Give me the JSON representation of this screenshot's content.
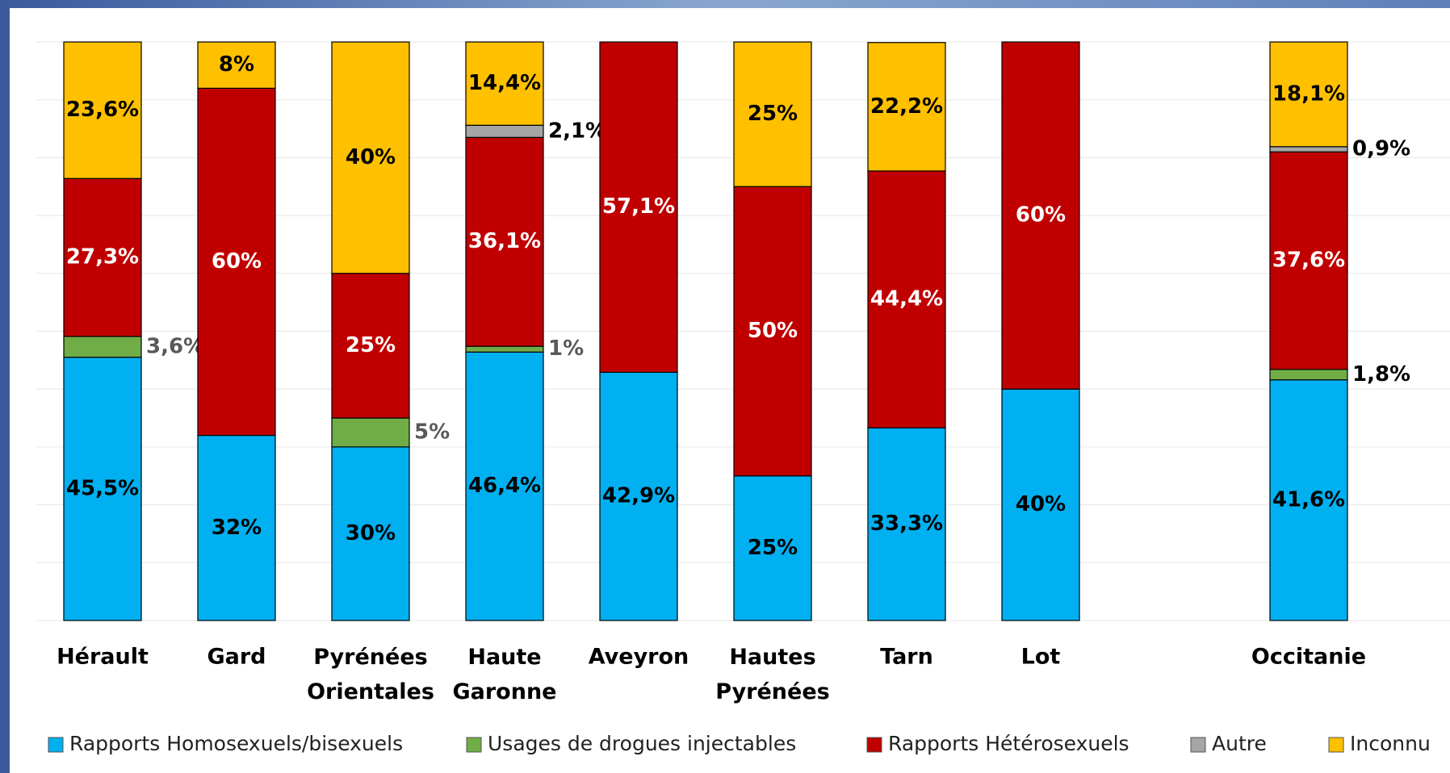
{
  "chart_data": {
    "type": "stacked_bar",
    "categories": [
      "Hérault",
      "Gard",
      "Pyrénées Orientales",
      "Haute Garonne",
      "Aveyron",
      "Hautes Pyrénées",
      "Tarn",
      "Lot",
      null,
      "Occitanie"
    ],
    "series": [
      {
        "name": "Rapports Homosexuels/bisexuels",
        "color": "#00b0f0",
        "values": [
          45.5,
          32,
          30,
          46.4,
          42.9,
          25,
          33.3,
          40,
          null,
          41.6
        ],
        "value_labels": [
          "45,5%",
          "32%",
          "30%",
          "46,4%",
          "42,9%",
          "25%",
          "33,3%",
          "40%",
          null,
          "41,6%"
        ]
      },
      {
        "name": "Usages de drogues injectables",
        "color": "#70ad47",
        "values": [
          3.6,
          0,
          5,
          1,
          0,
          0,
          0,
          0,
          null,
          1.8
        ],
        "value_labels": [
          "3,6%",
          null,
          "5%",
          "1%",
          null,
          null,
          null,
          null,
          null,
          "1,8%"
        ]
      },
      {
        "name": "Rapports Hétérosexuels",
        "color": "#c00000",
        "values": [
          27.3,
          60,
          25,
          36.1,
          57.1,
          50,
          44.4,
          60,
          null,
          37.6
        ],
        "value_labels": [
          "27,3%",
          "60%",
          "25%",
          "36,1%",
          "57,1%",
          "50%",
          "44,4%",
          "60%",
          null,
          "37,6%"
        ]
      },
      {
        "name": "Autre",
        "color": "#a5a5a5",
        "values": [
          0,
          0,
          0,
          2.1,
          0,
          0,
          0,
          0,
          null,
          0.9
        ],
        "value_labels": [
          null,
          null,
          null,
          "2,1%",
          null,
          null,
          null,
          null,
          null,
          "0,9%"
        ]
      },
      {
        "name": "Inconnu",
        "color": "#ffc000",
        "values": [
          23.6,
          8,
          40,
          14.4,
          0,
          25,
          22.2,
          0,
          null,
          18.1
        ],
        "value_labels": [
          "23,6%",
          "8%",
          "40%",
          "14,4%",
          null,
          "25%",
          "22,2%",
          null,
          null,
          "18,1%"
        ]
      }
    ],
    "ylim": [
      0,
      100
    ],
    "yticks": [
      0,
      10,
      20,
      30,
      40,
      50,
      60,
      70,
      80,
      90,
      100
    ],
    "grid": true,
    "legend": "bottom"
  }
}
